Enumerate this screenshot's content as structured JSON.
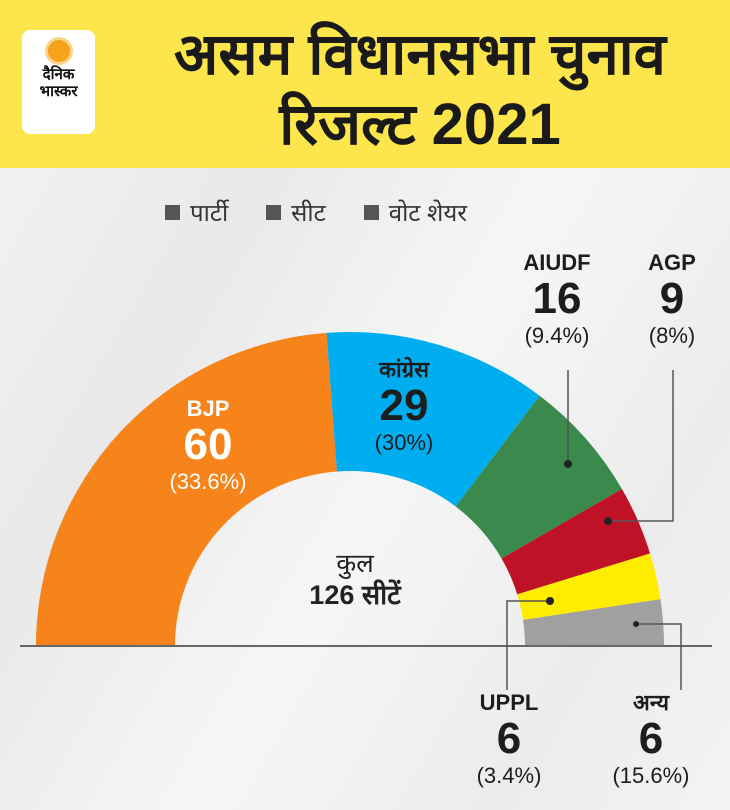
{
  "header": {
    "title_line1": "असम विधानसभा चुनाव",
    "title_line2": "रिजल्ट 2021",
    "logo_line1": "दैनिक",
    "logo_line2": "भास्कर"
  },
  "legend": [
    "पार्टी",
    "सीट",
    "वोट शेयर"
  ],
  "center": {
    "label": "कुल",
    "total": "126 सीटें"
  },
  "chart_data": {
    "type": "pie",
    "subtype": "half-donut",
    "title": "असम विधानसभा चुनाव रिजल्ट 2021",
    "total_seats": 126,
    "series": [
      {
        "name": "BJP",
        "seats": 60,
        "seats_label": "60",
        "vote_share": "(33.6%)",
        "color": "#f7841b"
      },
      {
        "name": "कांग्रेस",
        "seats": 29,
        "seats_label": "29",
        "vote_share": "(30%)",
        "color": "#00aeef"
      },
      {
        "name": "AIUDF",
        "seats": 16,
        "seats_label": "16",
        "vote_share": "(9.4%)",
        "color": "#3a8a4e"
      },
      {
        "name": "AGP",
        "seats": 9,
        "seats_label": "9",
        "vote_share": "(8%)",
        "color": "#c01227"
      },
      {
        "name": "UPPL",
        "seats": 6,
        "seats_label": "6",
        "vote_share": "(3.4%)",
        "color": "#ffec00"
      },
      {
        "name": "अन्य",
        "seats": 6,
        "seats_label": "6",
        "vote_share": "(15.6%)",
        "color": "#a0a0a0"
      }
    ]
  }
}
